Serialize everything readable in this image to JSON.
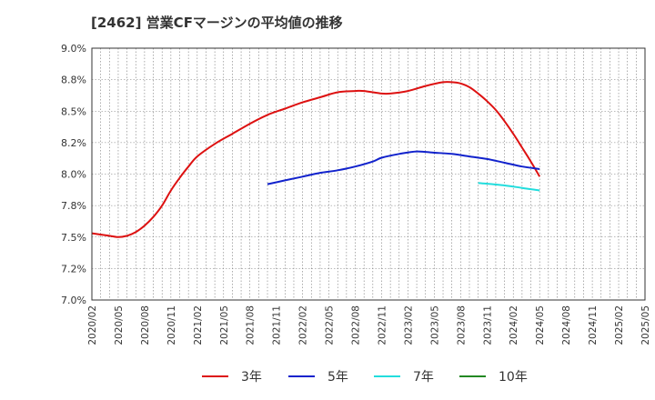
{
  "chart_data": {
    "type": "line",
    "title": "[2462]  営業CFマージンの平均値の推移",
    "xlabel": "",
    "ylabel": "",
    "x": [
      "2020/02",
      "2020/05",
      "2020/08",
      "2020/11",
      "2021/02",
      "2021/05",
      "2021/08",
      "2021/11",
      "2022/02",
      "2022/05",
      "2022/08",
      "2022/11",
      "2023/02",
      "2023/05",
      "2023/08",
      "2023/11",
      "2024/02",
      "2024/05",
      "2024/08",
      "2024/11",
      "2025/02",
      "2025/05"
    ],
    "y_ticks": [
      "7.0%",
      "7.2%",
      "7.5%",
      "7.8%",
      "8.0%",
      "8.2%",
      "8.5%",
      "8.8%",
      "9.0%"
    ],
    "ylim": [
      7.0,
      9.0
    ],
    "grid": true,
    "legend_position": "bottom",
    "series": [
      {
        "name": "3年",
        "color": "#dd1111",
        "points": [
          [
            "2020/02",
            7.53
          ],
          [
            "2020/04",
            7.51
          ],
          [
            "2020/05",
            7.5
          ],
          [
            "2020/06",
            7.51
          ],
          [
            "2020/07",
            7.54
          ],
          [
            "2020/08",
            7.59
          ],
          [
            "2020/09",
            7.66
          ],
          [
            "2020/10",
            7.75
          ],
          [
            "2020/11",
            7.87
          ],
          [
            "2020/12",
            7.97
          ],
          [
            "2021/01",
            8.06
          ],
          [
            "2021/02",
            8.14
          ],
          [
            "2021/04",
            8.24
          ],
          [
            "2021/06",
            8.32
          ],
          [
            "2021/08",
            8.4
          ],
          [
            "2021/10",
            8.47
          ],
          [
            "2021/12",
            8.52
          ],
          [
            "2022/02",
            8.57
          ],
          [
            "2022/04",
            8.61
          ],
          [
            "2022/06",
            8.65
          ],
          [
            "2022/08",
            8.66
          ],
          [
            "2022/09",
            8.66
          ],
          [
            "2022/11",
            8.64
          ],
          [
            "2022/12",
            8.64
          ],
          [
            "2023/02",
            8.66
          ],
          [
            "2023/04",
            8.7
          ],
          [
            "2023/06",
            8.73
          ],
          [
            "2023/07",
            8.73
          ],
          [
            "2023/08",
            8.72
          ],
          [
            "2023/09",
            8.69
          ],
          [
            "2023/10",
            8.64
          ],
          [
            "2023/11",
            8.58
          ],
          [
            "2023/12",
            8.51
          ],
          [
            "2024/01",
            8.42
          ],
          [
            "2024/02",
            8.32
          ],
          [
            "2024/03",
            8.21
          ],
          [
            "2024/04",
            8.1
          ],
          [
            "2024/05",
            7.98
          ]
        ]
      },
      {
        "name": "5年",
        "color": "#1122cc",
        "points": [
          [
            "2021/10",
            7.92
          ],
          [
            "2021/12",
            7.95
          ],
          [
            "2022/02",
            7.98
          ],
          [
            "2022/04",
            8.01
          ],
          [
            "2022/06",
            8.03
          ],
          [
            "2022/08",
            8.06
          ],
          [
            "2022/10",
            8.1
          ],
          [
            "2022/11",
            8.13
          ],
          [
            "2023/01",
            8.16
          ],
          [
            "2023/03",
            8.18
          ],
          [
            "2023/05",
            8.17
          ],
          [
            "2023/07",
            8.16
          ],
          [
            "2023/09",
            8.14
          ],
          [
            "2023/11",
            8.12
          ],
          [
            "2024/01",
            8.09
          ],
          [
            "2024/03",
            8.06
          ],
          [
            "2024/05",
            8.04
          ]
        ]
      },
      {
        "name": "7年",
        "color": "#22dddd",
        "points": [
          [
            "2023/10",
            7.93
          ],
          [
            "2024/01",
            7.91
          ],
          [
            "2024/03",
            7.89
          ],
          [
            "2024/05",
            7.87
          ]
        ]
      },
      {
        "name": "10年",
        "color": "#228822",
        "points": []
      }
    ]
  }
}
